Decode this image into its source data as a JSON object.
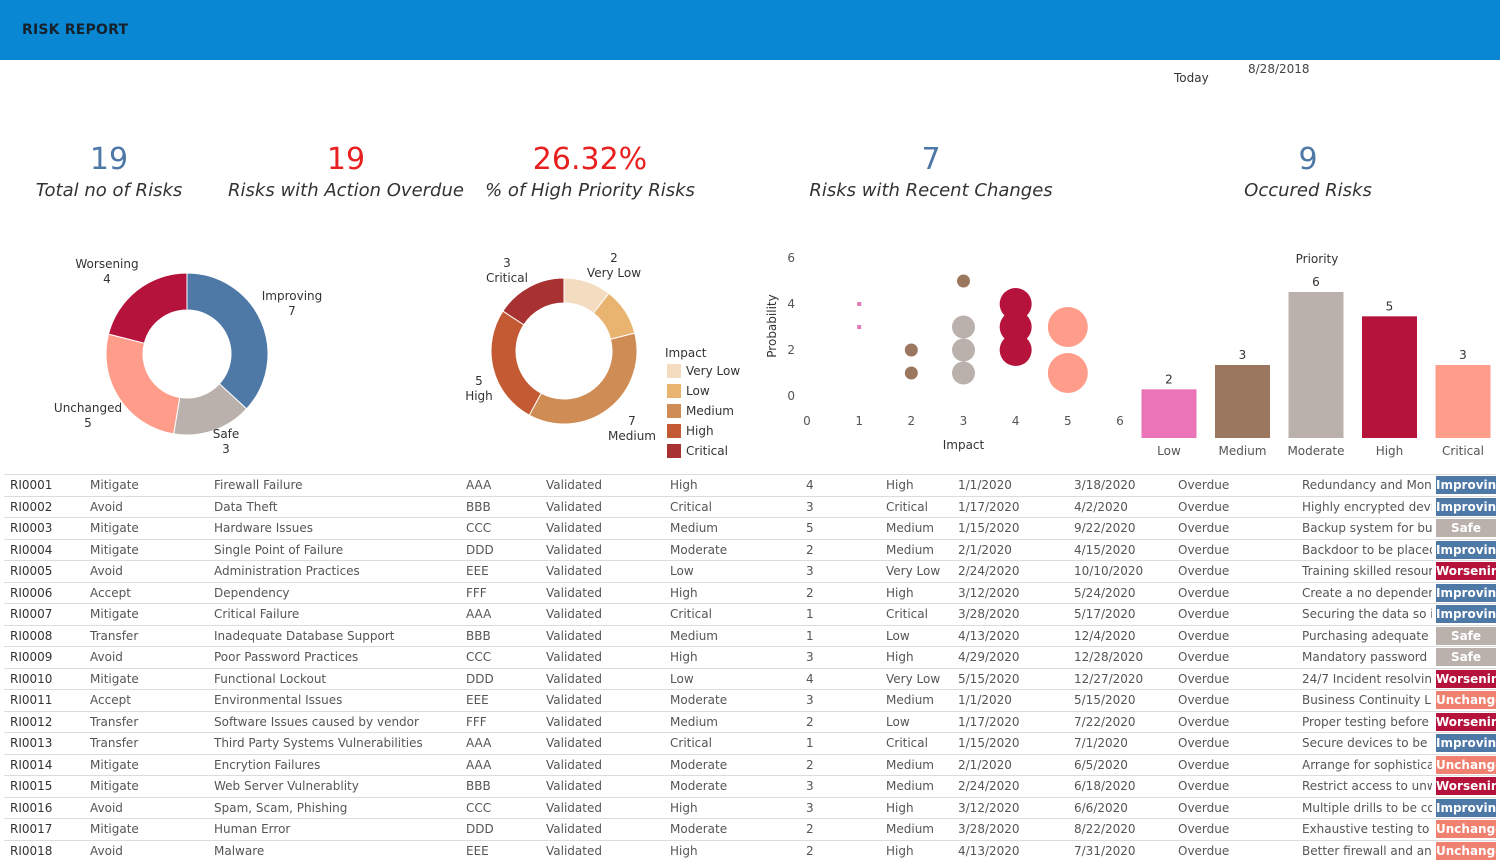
{
  "header": {
    "title": "RISK REPORT"
  },
  "today": {
    "label": "Today",
    "value": "8/28/2018"
  },
  "kpis": [
    {
      "value": "19",
      "label": "Total no of Risks",
      "color": "#4e79a7"
    },
    {
      "value": "19",
      "label": "Risks with Action Overdue",
      "color": "#e8201f"
    },
    {
      "value": "26.32%",
      "label": "% of High Priority Risks",
      "color": "#e8201f"
    },
    {
      "value": "7",
      "label": "Risks with Recent Changes",
      "color": "#4e79a7"
    },
    {
      "value": "9",
      "label": "Occured Risks",
      "color": "#4e79a7"
    }
  ],
  "chart_data": [
    {
      "type": "pie",
      "title": "",
      "slices": [
        {
          "label": "Improving",
          "value": 7,
          "color": "#4e79a7"
        },
        {
          "label": "Safe",
          "value": 3,
          "color": "#bab0ac"
        },
        {
          "label": "Unchanged",
          "value": 5,
          "color": "#ff9d8a"
        },
        {
          "label": "Worsening",
          "value": 4,
          "color": "#b5123c"
        }
      ]
    },
    {
      "type": "pie",
      "title": "",
      "legend_title": "Impact",
      "legend_position": "right",
      "slices": [
        {
          "label": "Very Low",
          "value": 2,
          "color": "#f3dcc0"
        },
        {
          "label": "Low",
          "value": 2,
          "color": "#e8b46f"
        },
        {
          "label": "Medium",
          "value": 7,
          "color": "#d08c55"
        },
        {
          "label": "High",
          "value": 5,
          "color": "#c45a33"
        },
        {
          "label": "Critical",
          "value": 3,
          "color": "#a83232"
        }
      ]
    },
    {
      "type": "scatter",
      "xlabel": "Impact",
      "ylabel": "Probability",
      "xlim": [
        0,
        6
      ],
      "ylim": [
        0,
        6
      ],
      "xticks": [
        "0",
        "1",
        "2",
        "3",
        "4",
        "5",
        "6"
      ],
      "yticks": [
        "0",
        "2",
        "4",
        "6"
      ],
      "points": [
        {
          "x": 1,
          "y": 4,
          "size": 1,
          "color": "#e07ab4"
        },
        {
          "x": 1,
          "y": 3,
          "size": 1,
          "color": "#e07ab4"
        },
        {
          "x": 2,
          "y": 2,
          "size": 2,
          "color": "#9c7760"
        },
        {
          "x": 2,
          "y": 1,
          "size": 2,
          "color": "#9c7760"
        },
        {
          "x": 3,
          "y": 5,
          "size": 2,
          "color": "#9c7760"
        },
        {
          "x": 3,
          "y": 3,
          "size": 3,
          "color": "#bab0ac"
        },
        {
          "x": 3,
          "y": 2,
          "size": 3,
          "color": "#bab0ac"
        },
        {
          "x": 3,
          "y": 1,
          "size": 3,
          "color": "#bab0ac"
        },
        {
          "x": 4,
          "y": 4,
          "size": 4,
          "color": "#b5123c"
        },
        {
          "x": 4,
          "y": 3,
          "size": 4,
          "color": "#b5123c"
        },
        {
          "x": 4,
          "y": 2,
          "size": 4,
          "color": "#b5123c"
        },
        {
          "x": 5,
          "y": 3,
          "size": 5,
          "color": "#ff9d8a"
        },
        {
          "x": 5,
          "y": 1,
          "size": 5,
          "color": "#ff9d8a"
        }
      ]
    },
    {
      "type": "bar",
      "title": "Priority",
      "categories": [
        "Low",
        "Medium",
        "Moderate",
        "High",
        "Critical"
      ],
      "values": [
        2,
        3,
        6,
        5,
        3
      ],
      "colors": [
        "#ea74b7",
        "#9c7760",
        "#bab0ac",
        "#b5123c",
        "#ff9d8a"
      ],
      "ylim": [
        0,
        6
      ]
    }
  ],
  "trend_colors": {
    "Improving": "#4e79a7",
    "Safe": "#bab0ac",
    "Worsening": "#b5123c",
    "Unchanged": "#f08070"
  },
  "table": {
    "rows": [
      [
        "RI0001",
        "Mitigate",
        "Firewall Failure",
        "AAA",
        "Validated",
        "High",
        "4",
        "High",
        "1/1/2020",
        "3/18/2020",
        "Overdue",
        "Redundancy and Moni...",
        "Improving"
      ],
      [
        "RI0002",
        "Avoid",
        "Data Theft",
        "BBB",
        "Validated",
        "Critical",
        "3",
        "Critical",
        "1/17/2020",
        "4/2/2020",
        "Overdue",
        "Highly encrypted devi...",
        "Improving"
      ],
      [
        "RI0003",
        "Mitigate",
        "Hardware Issues",
        "CCC",
        "Validated",
        "Medium",
        "5",
        "Medium",
        "1/15/2020",
        "9/22/2020",
        "Overdue",
        "Backup system for bus...",
        "Safe"
      ],
      [
        "RI0004",
        "Mitigate",
        "Single Point of Failure",
        "DDD",
        "Validated",
        "Moderate",
        "2",
        "Medium",
        "2/1/2020",
        "4/15/2020",
        "Overdue",
        "Backdoor to be placed",
        "Improving"
      ],
      [
        "RI0005",
        "Avoid",
        "Administration Practices",
        "EEE",
        "Validated",
        "Low",
        "3",
        "Very Low",
        "2/24/2020",
        "10/10/2020",
        "Overdue",
        "Training skilled resour...",
        "Worsening"
      ],
      [
        "RI0006",
        "Accept",
        "Dependency",
        "FFF",
        "Validated",
        "High",
        "2",
        "High",
        "3/12/2020",
        "5/24/2020",
        "Overdue",
        "Create a no dependenc...",
        "Improving"
      ],
      [
        "RI0007",
        "Mitigate",
        "Critical Failure",
        "AAA",
        "Validated",
        "Critical",
        "1",
        "Critical",
        "3/28/2020",
        "5/17/2020",
        "Overdue",
        "Securing the data so it...",
        "Improving"
      ],
      [
        "RI0008",
        "Transfer",
        "Inadequate Database Support",
        "BBB",
        "Validated",
        "Medium",
        "1",
        "Low",
        "4/13/2020",
        "12/4/2020",
        "Overdue",
        "Purchasing adequate ...",
        "Safe"
      ],
      [
        "RI0009",
        "Avoid",
        "Poor Password Practices",
        "CCC",
        "Validated",
        "High",
        "3",
        "High",
        "4/29/2020",
        "12/28/2020",
        "Overdue",
        "Mandatory password ...",
        "Safe"
      ],
      [
        "RI0010",
        "Mitigate",
        "Functional Lockout",
        "DDD",
        "Validated",
        "Low",
        "4",
        "Very Low",
        "5/15/2020",
        "12/27/2020",
        "Overdue",
        "24/7 Incident resolvin...",
        "Worsening"
      ],
      [
        "RI0011",
        "Accept",
        "Environmental Issues",
        "EEE",
        "Validated",
        "Moderate",
        "3",
        "Medium",
        "1/1/2020",
        "5/15/2020",
        "Overdue",
        "Business Continuity L...",
        "Unchanged"
      ],
      [
        "RI0012",
        "Transfer",
        "Software Issues caused by vendor",
        "FFF",
        "Validated",
        "Medium",
        "2",
        "Low",
        "1/17/2020",
        "7/22/2020",
        "Overdue",
        "Proper testing before ...",
        "Worsening"
      ],
      [
        "RI0013",
        "Transfer",
        "Third Party Systems Vulnerabilities",
        "AAA",
        "Validated",
        "Critical",
        "1",
        "Critical",
        "1/15/2020",
        "7/1/2020",
        "Overdue",
        "Secure devices to be is...",
        "Improving"
      ],
      [
        "RI0014",
        "Mitigate",
        "Encrytion Failures",
        "AAA",
        "Validated",
        "Moderate",
        "2",
        "Medium",
        "2/1/2020",
        "6/5/2020",
        "Overdue",
        "Arrange for sophistica...",
        "Unchanged"
      ],
      [
        "RI0015",
        "Mitigate",
        "Web Server Vulnerablity",
        "BBB",
        "Validated",
        "Moderate",
        "3",
        "Medium",
        "2/24/2020",
        "6/18/2020",
        "Overdue",
        "Restrict access to unw...",
        "Worsening"
      ],
      [
        "RI0016",
        "Avoid",
        "Spam, Scam, Phishing",
        "CCC",
        "Validated",
        "High",
        "3",
        "High",
        "3/12/2020",
        "6/6/2020",
        "Overdue",
        "Multiple drills to be co...",
        "Improving"
      ],
      [
        "RI0017",
        "Mitigate",
        "Human Error",
        "DDD",
        "Validated",
        "Moderate",
        "2",
        "Medium",
        "3/28/2020",
        "8/22/2020",
        "Overdue",
        "Exhaustive testing to ...",
        "Unchanged"
      ],
      [
        "RI0018",
        "Avoid",
        "Malware",
        "EEE",
        "Validated",
        "High",
        "2",
        "High",
        "4/13/2020",
        "7/31/2020",
        "Overdue",
        "Better firewall and an...",
        "Unchanged"
      ]
    ]
  }
}
